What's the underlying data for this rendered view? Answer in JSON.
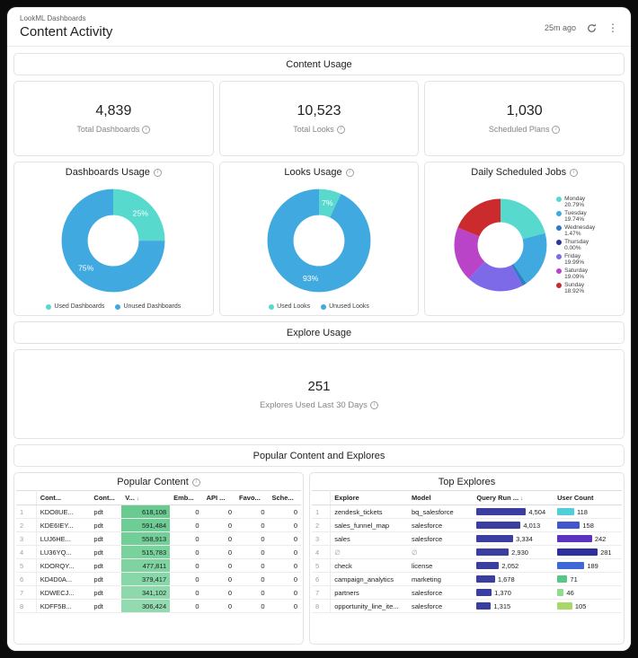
{
  "window": {
    "breadcrumb": "LookML Dashboards",
    "title": "Content Activity",
    "updated": "25m ago"
  },
  "icons": {
    "info": "i",
    "kebab": "⋮",
    "sort_desc": "↓"
  },
  "sections": {
    "content_usage": "Content Usage",
    "explore_usage": "Explore Usage",
    "popular": "Popular Content and Explores"
  },
  "kpis": [
    {
      "value": "4,839",
      "label": "Total Dashboards"
    },
    {
      "value": "10,523",
      "label": "Total Looks"
    },
    {
      "value": "1,030",
      "label": "Scheduled Plans"
    }
  ],
  "explore_kpi": {
    "value": "251",
    "label": "Explores Used Last 30 Days"
  },
  "chart_data": [
    {
      "type": "pie",
      "title": "Dashboards Usage",
      "labels": [
        "Used Dashboards",
        "Unused Dashboards"
      ],
      "values": [
        25,
        75
      ],
      "slice_labels": [
        "25%",
        "75%"
      ],
      "colors": [
        "#57D9CE",
        "#3FA9E0"
      ],
      "legend_position": "bottom"
    },
    {
      "type": "pie",
      "title": "Looks Usage",
      "labels": [
        "Used Looks",
        "Unused Looks"
      ],
      "values": [
        7,
        93
      ],
      "slice_labels": [
        "7%",
        "93%"
      ],
      "colors": [
        "#57D9CE",
        "#3FA9E0"
      ],
      "legend_position": "bottom"
    },
    {
      "type": "pie",
      "title": "Daily Scheduled Jobs",
      "labels": [
        "Monday",
        "Tuesday",
        "Wednesday",
        "Thursday",
        "Friday",
        "Saturday",
        "Sunday"
      ],
      "values": [
        20.79,
        19.74,
        1.47,
        0.0,
        19.99,
        19.09,
        18.92
      ],
      "percent_labels": [
        "20.79%",
        "19.74%",
        "1.47%",
        "0.00%",
        "19.99%",
        "19.09%",
        "18.92%"
      ],
      "colors": [
        "#57D9CE",
        "#3FA9E0",
        "#2F7CC4",
        "#28359C",
        "#7C6AE8",
        "#B944C8",
        "#CC2B2E"
      ],
      "legend_position": "right"
    },
    {
      "type": "table",
      "title": "Popular Content",
      "columns": [
        "Cont...",
        "Cont...",
        "V...",
        "Emb...",
        "API ...",
        "Favo...",
        "Sche..."
      ],
      "sorted_column": "V...",
      "rows": [
        {
          "cells": [
            "KDO8UE...",
            "pdt",
            "618,108",
            "0",
            "0",
            "0",
            "0"
          ],
          "views_color": "#69CB90"
        },
        {
          "cells": [
            "KDE6IEY...",
            "pdt",
            "591,484",
            "0",
            "0",
            "0",
            "0"
          ],
          "views_color": "#6ECD94"
        },
        {
          "cells": [
            "LUJ6HE...",
            "pdt",
            "558,913",
            "0",
            "0",
            "0",
            "0"
          ],
          "views_color": "#73CF98"
        },
        {
          "cells": [
            "LU36YQ...",
            "pdt",
            "515,783",
            "0",
            "0",
            "0",
            "0"
          ],
          "views_color": "#79D19C"
        },
        {
          "cells": [
            "KDORQY...",
            "pdt",
            "477,811",
            "0",
            "0",
            "0",
            "0"
          ],
          "views_color": "#7ED3A0"
        },
        {
          "cells": [
            "KD4D0A...",
            "pdt",
            "379,417",
            "0",
            "0",
            "0",
            "0"
          ],
          "views_color": "#88D7A8"
        },
        {
          "cells": [
            "KDWECJ...",
            "pdt",
            "341,102",
            "0",
            "0",
            "0",
            "0"
          ],
          "views_color": "#8DD9AC"
        },
        {
          "cells": [
            "KDFF5B...",
            "pdt",
            "306,424",
            "0",
            "0",
            "0",
            "0"
          ],
          "views_color": "#92DBB0"
        }
      ]
    },
    {
      "type": "table",
      "title": "Top Explores",
      "columns": [
        "Explore",
        "Model",
        "Query Run ...",
        "User Count"
      ],
      "sorted_column": "Query Run ...",
      "query_bar_color": "#3A3EA0",
      "query_max": 4504,
      "user_max": 281,
      "rows": [
        {
          "explore": "zendesk_tickets",
          "model": "bq_salesforce",
          "query_runs": "4,504",
          "query_runs_value": 4504,
          "user_count": "118",
          "user_count_value": 118,
          "user_bar_color": "#4FCFD6"
        },
        {
          "explore": "sales_funnel_map",
          "model": "salesforce",
          "query_runs": "4,013",
          "query_runs_value": 4013,
          "user_count": "158",
          "user_count_value": 158,
          "user_bar_color": "#4456CC"
        },
        {
          "explore": "sales",
          "model": "salesforce",
          "query_runs": "3,334",
          "query_runs_value": 3334,
          "user_count": "242",
          "user_count_value": 242,
          "user_bar_color": "#5B33C0"
        },
        {
          "explore": "∅",
          "model": "∅",
          "query_runs": "2,930",
          "query_runs_value": 2930,
          "user_count": "281",
          "user_count_value": 281,
          "user_bar_color": "#2F2E9E"
        },
        {
          "explore": "check",
          "model": "license",
          "query_runs": "2,052",
          "query_runs_value": 2052,
          "user_count": "189",
          "user_count_value": 189,
          "user_bar_color": "#3E68D6"
        },
        {
          "explore": "campaign_analytics",
          "model": "marketing",
          "query_runs": "1,678",
          "query_runs_value": 1678,
          "user_count": "71",
          "user_count_value": 71,
          "user_bar_color": "#57C785"
        },
        {
          "explore": "partners",
          "model": "salesforce",
          "query_runs": "1,370",
          "query_runs_value": 1370,
          "user_count": "46",
          "user_count_value": 46,
          "user_bar_color": "#8FDC8F"
        },
        {
          "explore": "opportunity_line_ite...",
          "model": "salesforce",
          "query_runs": "1,315",
          "query_runs_value": 1315,
          "user_count": "105",
          "user_count_value": 105,
          "user_bar_color": "#A8D86A"
        }
      ]
    }
  ]
}
